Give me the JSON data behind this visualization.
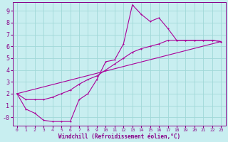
{
  "xlabel": "Windchill (Refroidissement éolien,°C)",
  "background_color": "#c8eef0",
  "grid_color": "#a0d8d8",
  "line_color": "#aa0099",
  "xlim": [
    -0.5,
    23.5
  ],
  "ylim": [
    -0.7,
    9.7
  ],
  "xticks": [
    0,
    1,
    2,
    3,
    4,
    5,
    6,
    7,
    8,
    9,
    10,
    11,
    12,
    13,
    14,
    15,
    16,
    17,
    18,
    19,
    20,
    21,
    22,
    23
  ],
  "yticks": [
    0,
    1,
    2,
    3,
    4,
    5,
    6,
    7,
    8,
    9
  ],
  "ytick_labels": [
    "-0",
    "1",
    "2",
    "3",
    "4",
    "5",
    "6",
    "7",
    "8",
    "9"
  ],
  "line1_x": [
    0,
    1,
    2,
    3,
    4,
    5,
    6,
    7,
    8,
    9,
    10,
    11,
    12,
    13,
    14,
    15,
    16,
    17,
    18,
    19,
    20,
    21,
    22,
    23
  ],
  "line1_y": [
    2.0,
    0.7,
    0.35,
    -0.25,
    -0.35,
    -0.35,
    -0.35,
    1.5,
    2.0,
    3.2,
    4.7,
    4.85,
    6.2,
    9.5,
    8.7,
    8.1,
    8.4,
    7.5,
    6.5,
    6.5,
    6.5,
    6.5,
    6.5,
    6.4
  ],
  "line2_x": [
    0,
    1,
    2,
    3,
    4,
    5,
    6,
    7,
    8,
    9,
    10,
    11,
    12,
    13,
    14,
    15,
    16,
    17,
    18,
    19,
    20,
    21,
    22,
    23
  ],
  "line2_y": [
    2.0,
    1.5,
    1.5,
    1.5,
    1.7,
    2.0,
    2.3,
    2.8,
    3.2,
    3.5,
    4.0,
    4.5,
    5.0,
    5.5,
    5.8,
    6.0,
    6.2,
    6.5,
    6.5,
    6.5,
    6.5,
    6.5,
    6.5,
    6.4
  ],
  "line3_x": [
    0,
    23
  ],
  "line3_y": [
    2.0,
    6.4
  ]
}
